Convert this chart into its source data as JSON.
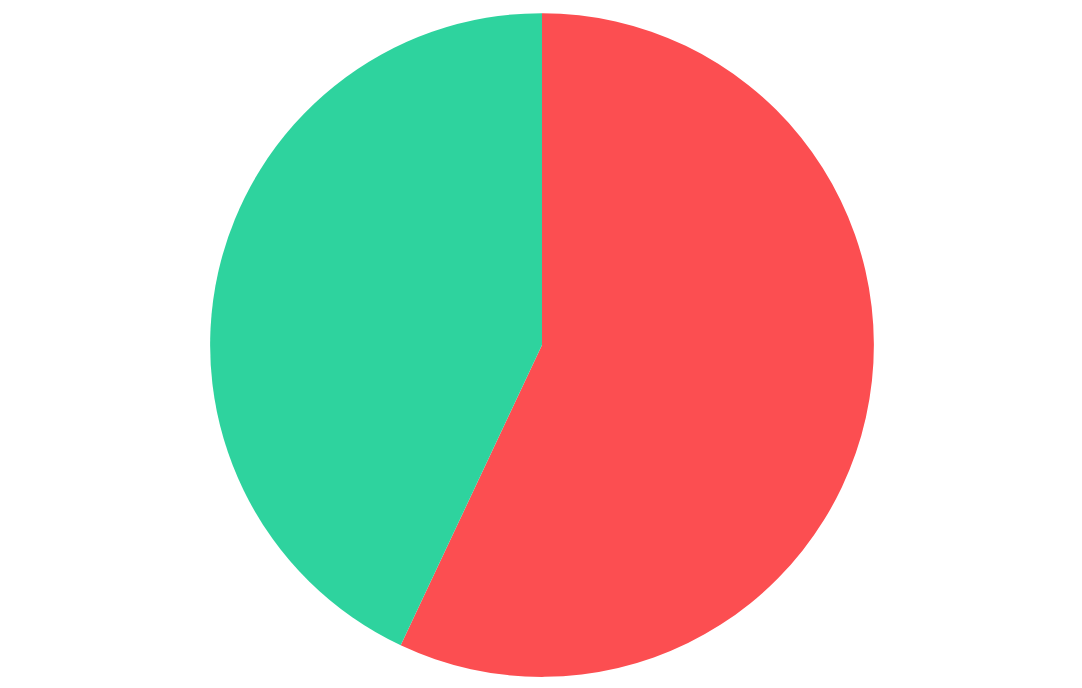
{
  "chart_data": {
    "type": "pie",
    "categories": [
      null,
      null
    ],
    "values": [
      57,
      43
    ],
    "colors": [
      "#fc4e51",
      "#2ed39e"
    ]
  }
}
